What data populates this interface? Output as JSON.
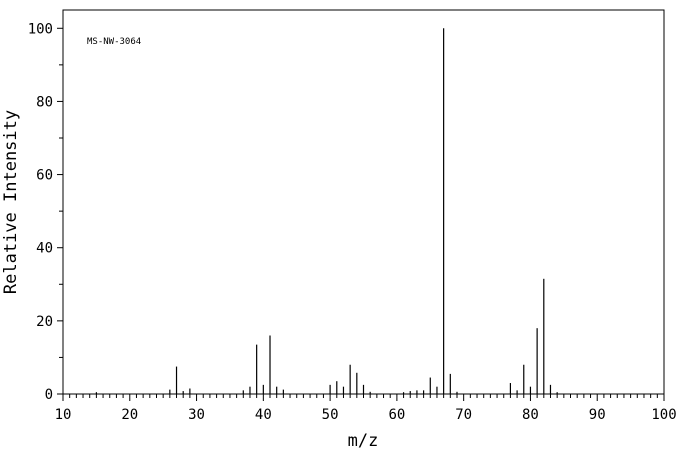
{
  "chart_data": {
    "type": "bar",
    "title": "",
    "annotation": "MS-NW-3064",
    "xlabel": "m/z",
    "ylabel": "Relative Intensity",
    "xlim": [
      10,
      100
    ],
    "ylim": [
      0,
      105
    ],
    "x_ticks": [
      10,
      20,
      30,
      40,
      50,
      60,
      70,
      80,
      90,
      100
    ],
    "y_ticks": [
      0,
      20,
      40,
      60,
      80,
      100
    ],
    "grid": false,
    "legend": "none",
    "bar_color": "#000000",
    "series": [
      {
        "x": [
          15,
          26,
          27,
          28,
          29,
          37,
          38,
          39,
          40,
          41,
          42,
          43,
          50,
          51,
          52,
          53,
          54,
          55,
          56,
          61,
          62,
          63,
          64,
          65,
          66,
          67,
          68,
          69,
          77,
          78,
          79,
          80,
          81,
          82,
          83,
          84
        ],
        "y": [
          0.5,
          1.2,
          7.5,
          0.8,
          1.5,
          1.0,
          2.0,
          13.5,
          2.5,
          16.0,
          2.0,
          1.2,
          2.5,
          3.5,
          2.0,
          8.0,
          5.8,
          2.5,
          0.6,
          0.5,
          0.8,
          1.0,
          1.0,
          4.5,
          2.0,
          100.0,
          5.5,
          0.6,
          3.0,
          1.0,
          8.0,
          2.0,
          18.0,
          31.5,
          2.5,
          0.5
        ]
      }
    ]
  }
}
